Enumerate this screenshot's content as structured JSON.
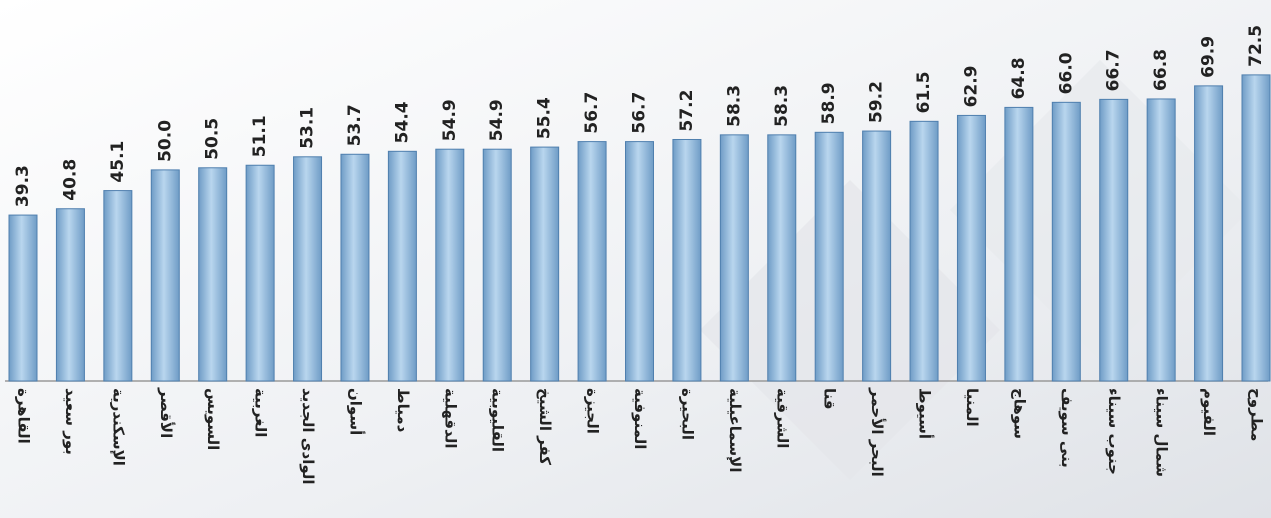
{
  "chart_data": {
    "type": "bar",
    "categories": [
      "القاهرة",
      "بور سعيد",
      "الإسكندرية",
      "الأقصر",
      "السويس",
      "الغربية",
      "الوادى الجديد",
      "أسوان",
      "دمياط",
      "الدقهلية",
      "القليوبية",
      "كفر الشيخ",
      "الجيزة",
      "المنوفية",
      "البحيرة",
      "الإسماعيلية",
      "الشرقية",
      "قنا",
      "البحر الأحمر",
      "أسيوط",
      "المنيا",
      "سوهاج",
      "بنى سويف",
      "جنوب سيناء",
      "شمال سيناء",
      "الفيوم",
      "مطروح"
    ],
    "values": [
      39.3,
      40.8,
      45.1,
      50.0,
      50.5,
      51.1,
      53.1,
      53.7,
      54.4,
      54.9,
      54.9,
      55.4,
      56.7,
      56.7,
      57.2,
      58.3,
      58.3,
      58.9,
      59.2,
      61.5,
      62.9,
      64.8,
      66.0,
      66.7,
      66.8,
      69.9,
      72.5
    ],
    "value_labels": [
      "39.3",
      "40.8",
      "45.1",
      "50.0",
      "50.5",
      "51.1",
      "53.1",
      "53.7",
      "54.4",
      "54.9",
      "54.9",
      "55.4",
      "56.7",
      "56.7",
      "57.2",
      "58.3",
      "58.3",
      "58.9",
      "59.2",
      "61.5",
      "62.9",
      "64.8",
      "66.0",
      "66.7",
      "66.8",
      "69.9",
      "72.5"
    ],
    "color": "#8fb8dc",
    "ylim": [
      0,
      90
    ]
  }
}
